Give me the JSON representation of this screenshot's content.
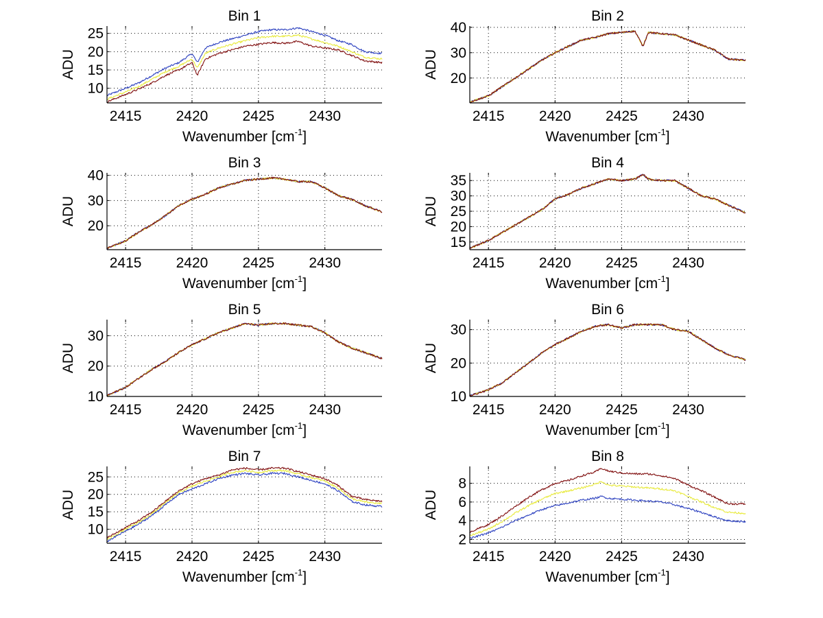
{
  "chart_data": [
    {
      "type": "line",
      "title": "Bin 1",
      "xlabel": "Wavenumber [cm-1]",
      "xlabel_main": "Wavenumber [cm",
      "xlabel_sup": "-1",
      "xlabel_end": "]",
      "ylabel": "ADU",
      "xlim": [
        2413.6,
        2434.3
      ],
      "ylim": [
        6,
        27
      ],
      "xticks": [
        2415,
        2420,
        2425,
        2430
      ],
      "yticks": [
        10,
        15,
        20,
        25
      ],
      "grid": true,
      "x": [
        2413.6,
        2415,
        2416,
        2417,
        2418,
        2419,
        2420,
        2420.4,
        2421,
        2422,
        2423,
        2424,
        2425,
        2426,
        2427,
        2428,
        2429,
        2430,
        2431,
        2432,
        2433,
        2434.3
      ],
      "series": [
        {
          "name": "blue",
          "color": "#2a3fbf",
          "values": [
            8,
            10,
            11.5,
            13.5,
            15.5,
            17,
            19.5,
            17,
            21,
            22.5,
            23.5,
            24.5,
            25.5,
            26,
            26,
            26.5,
            25.5,
            24.5,
            23,
            22,
            20,
            19.5
          ]
        },
        {
          "name": "yellow",
          "color": "#e8ea3a",
          "values": [
            7,
            9,
            10.5,
            12.5,
            14.5,
            16,
            18,
            15.5,
            19.5,
            21,
            22,
            23,
            23.8,
            24.2,
            24.2,
            24.5,
            23.5,
            22.5,
            21.5,
            20,
            18.5,
            18
          ]
        },
        {
          "name": "darkred",
          "color": "#7f0d0d",
          "values": [
            6.3,
            8.3,
            9.8,
            11.5,
            13.5,
            15,
            17,
            13.5,
            18,
            19.5,
            20.5,
            21.5,
            22,
            22.5,
            22.3,
            22.8,
            21.5,
            21,
            20.5,
            19,
            17.5,
            17
          ]
        }
      ]
    },
    {
      "type": "line",
      "title": "Bin 2",
      "xlabel": "Wavenumber [cm-1]",
      "xlabel_main": "Wavenumber [cm",
      "xlabel_sup": "-1",
      "xlabel_end": "]",
      "ylabel": "ADU",
      "xlim": [
        2413.6,
        2434.3
      ],
      "ylim": [
        10.2,
        40.5
      ],
      "xticks": [
        2415,
        2420,
        2425,
        2430
      ],
      "yticks": [
        20,
        30,
        40
      ],
      "grid": true,
      "x": [
        2413.6,
        2415,
        2416,
        2417,
        2418,
        2419,
        2420,
        2421,
        2422,
        2423,
        2424,
        2425,
        2426,
        2426.6,
        2427,
        2428,
        2429,
        2430,
        2431,
        2432,
        2433,
        2434.3
      ],
      "series": [
        {
          "name": "blue",
          "color": "#2a3fbf",
          "values": [
            10.5,
            13,
            16.5,
            20,
            23.5,
            27,
            30,
            32.5,
            35,
            36,
            37.5,
            38,
            38.5,
            32.5,
            38,
            37.5,
            37,
            35,
            33,
            31,
            27.5,
            27
          ]
        },
        {
          "name": "yellow",
          "color": "#e8ea3a",
          "values": [
            10.5,
            13,
            16.5,
            20,
            23.5,
            27,
            30,
            32.5,
            35,
            36,
            37.5,
            38,
            38.5,
            32.5,
            38,
            37.5,
            37,
            35,
            33,
            31,
            27.5,
            27
          ]
        },
        {
          "name": "darkred",
          "color": "#7f0d0d",
          "values": [
            10.5,
            13,
            16.5,
            20,
            23.5,
            27,
            30,
            32.5,
            35,
            36,
            37.5,
            38,
            38.5,
            32.5,
            38,
            37.5,
            37,
            35,
            33,
            31,
            27.5,
            27
          ]
        }
      ]
    },
    {
      "type": "line",
      "title": "Bin 3",
      "xlabel": "Wavenumber [cm-1]",
      "xlabel_main": "Wavenumber [cm",
      "xlabel_sup": "-1",
      "xlabel_end": "]",
      "ylabel": "ADU",
      "xlim": [
        2413.6,
        2434.3
      ],
      "ylim": [
        10.5,
        41
      ],
      "xticks": [
        2415,
        2420,
        2425,
        2430
      ],
      "yticks": [
        20,
        30,
        40
      ],
      "grid": true,
      "x": [
        2413.6,
        2415,
        2416,
        2417,
        2418,
        2419,
        2420,
        2421,
        2422,
        2423,
        2424,
        2425,
        2426,
        2427,
        2428,
        2429,
        2430,
        2431,
        2432,
        2433,
        2434.3
      ],
      "series": [
        {
          "name": "blue",
          "color": "#2a3fbf",
          "values": [
            11,
            14,
            17.5,
            20.5,
            24,
            28,
            30.5,
            32.5,
            35,
            36.5,
            38,
            38.5,
            39,
            38.5,
            37.5,
            37.5,
            35,
            32,
            30.5,
            28,
            25.5
          ]
        },
        {
          "name": "yellow",
          "color": "#e8ea3a",
          "values": [
            11,
            14,
            17.5,
            20.5,
            24,
            28,
            30.5,
            32.5,
            35,
            36.5,
            38,
            38.5,
            39,
            38.5,
            37.5,
            37.5,
            35,
            32,
            30.5,
            28,
            25.5
          ]
        },
        {
          "name": "darkred",
          "color": "#7f0d0d",
          "values": [
            11,
            14,
            17.5,
            20.5,
            24,
            28,
            30.5,
            32.5,
            35,
            36.5,
            38,
            38.5,
            39,
            38.5,
            37.5,
            37.5,
            35,
            32,
            30.5,
            28,
            25.5
          ]
        }
      ]
    },
    {
      "type": "line",
      "title": "Bin 4",
      "xlabel": "Wavenumber [cm-1]",
      "xlabel_main": "Wavenumber [cm",
      "xlabel_sup": "-1",
      "xlabel_end": "]",
      "ylabel": "ADU",
      "xlim": [
        2413.6,
        2434.3
      ],
      "ylim": [
        12.5,
        37.5
      ],
      "xticks": [
        2415,
        2420,
        2425,
        2430
      ],
      "yticks": [
        15,
        20,
        25,
        30,
        35
      ],
      "grid": true,
      "x": [
        2413.6,
        2415,
        2416,
        2417,
        2418,
        2419,
        2420,
        2421,
        2422,
        2423,
        2424,
        2425,
        2426,
        2426.6,
        2427,
        2428,
        2429,
        2430,
        2431,
        2432,
        2433,
        2434.3
      ],
      "series": [
        {
          "name": "blue",
          "color": "#2a3fbf",
          "values": [
            13,
            15.5,
            18,
            20.5,
            23,
            25.5,
            29,
            30.5,
            32.5,
            34,
            35.5,
            35,
            35.5,
            37,
            35.5,
            35,
            35,
            32.5,
            30,
            29,
            27,
            24.5
          ]
        },
        {
          "name": "yellow",
          "color": "#e8ea3a",
          "values": [
            13,
            15.5,
            18,
            20.5,
            23,
            25.5,
            29,
            30.5,
            32.5,
            34,
            35.5,
            35,
            35.5,
            37,
            35.5,
            35,
            35,
            32.5,
            30,
            29,
            27,
            24.5
          ]
        },
        {
          "name": "darkred",
          "color": "#7f0d0d",
          "values": [
            13,
            15.5,
            18,
            20.5,
            23,
            25.5,
            29,
            30.5,
            32.5,
            34,
            35.5,
            35,
            35.5,
            37,
            35.5,
            35,
            35,
            32.5,
            30,
            29,
            27,
            24.5
          ]
        }
      ]
    },
    {
      "type": "line",
      "title": "Bin 5",
      "xlabel": "Wavenumber [cm-1]",
      "xlabel_main": "Wavenumber [cm",
      "xlabel_sup": "-1",
      "xlabel_end": "]",
      "ylabel": "ADU",
      "xlim": [
        2413.6,
        2434.3
      ],
      "ylim": [
        10,
        35.3
      ],
      "xticks": [
        2415,
        2420,
        2425,
        2430
      ],
      "yticks": [
        10,
        20,
        30
      ],
      "grid": true,
      "x": [
        2413.6,
        2415,
        2416,
        2417,
        2418,
        2419,
        2420,
        2421,
        2422,
        2423,
        2424,
        2425,
        2426,
        2427,
        2428,
        2429,
        2430,
        2431,
        2432,
        2433,
        2434.3
      ],
      "series": [
        {
          "name": "blue",
          "color": "#2a3fbf",
          "values": [
            10.3,
            13,
            16,
            19,
            21.5,
            24.5,
            27,
            29,
            31,
            32.5,
            34,
            33.5,
            34,
            34,
            33.5,
            33,
            31,
            28,
            26,
            24.5,
            22.5
          ]
        },
        {
          "name": "yellow",
          "color": "#e8ea3a",
          "values": [
            10.3,
            13,
            16,
            19,
            21.5,
            24.5,
            27,
            29,
            31,
            32.5,
            34,
            33.5,
            34,
            34,
            33.5,
            33,
            31,
            28,
            26,
            24.5,
            22.5
          ]
        },
        {
          "name": "darkred",
          "color": "#7f0d0d",
          "values": [
            10.3,
            13,
            16,
            19,
            21.5,
            24.5,
            27,
            29,
            31,
            32.5,
            34,
            33.5,
            34,
            34,
            33.5,
            33,
            31,
            28,
            26,
            24.5,
            22.5
          ]
        }
      ]
    },
    {
      "type": "line",
      "title": "Bin 6",
      "xlabel": "Wavenumber [cm-1]",
      "xlabel_main": "Wavenumber [cm",
      "xlabel_sup": "-1",
      "xlabel_end": "]",
      "ylabel": "ADU",
      "xlim": [
        2413.6,
        2434.3
      ],
      "ylim": [
        10,
        33
      ],
      "xticks": [
        2415,
        2420,
        2425,
        2430
      ],
      "yticks": [
        10,
        20,
        30
      ],
      "grid": true,
      "x": [
        2413.6,
        2415,
        2416,
        2417,
        2418,
        2419,
        2420,
        2421,
        2422,
        2423,
        2424,
        2425,
        2426,
        2427,
        2428,
        2429,
        2430,
        2431,
        2432,
        2433,
        2434.3
      ],
      "series": [
        {
          "name": "blue",
          "color": "#2a3fbf",
          "values": [
            10.2,
            12,
            14,
            17,
            20,
            23,
            25.5,
            27.5,
            29.5,
            31,
            31.5,
            30.5,
            31.5,
            31.5,
            31.5,
            30,
            29.5,
            27,
            24.5,
            22.5,
            21
          ]
        },
        {
          "name": "yellow",
          "color": "#e8ea3a",
          "values": [
            10.2,
            12,
            14,
            17,
            20,
            23,
            25.5,
            27.5,
            29.5,
            31,
            31.5,
            30.5,
            31.5,
            31.5,
            31.5,
            30,
            29.5,
            27,
            24.5,
            22.5,
            21
          ]
        },
        {
          "name": "darkred",
          "color": "#7f0d0d",
          "values": [
            10.2,
            12,
            14,
            17,
            20,
            23,
            25.5,
            27.5,
            29.5,
            31,
            31.5,
            30.5,
            31.5,
            31.5,
            31.5,
            30,
            29.5,
            27,
            24.5,
            22.5,
            21
          ]
        }
      ]
    },
    {
      "type": "line",
      "title": "Bin 7",
      "xlabel": "Wavenumber [cm-1]",
      "xlabel_main": "Wavenumber [cm",
      "xlabel_sup": "-1",
      "xlabel_end": "]",
      "ylabel": "ADU",
      "xlim": [
        2413.6,
        2434.3
      ],
      "ylim": [
        6,
        28
      ],
      "xticks": [
        2415,
        2420,
        2425,
        2430
      ],
      "yticks": [
        10,
        15,
        20,
        25
      ],
      "grid": true,
      "x": [
        2413.6,
        2415,
        2416,
        2417,
        2418,
        2419,
        2420,
        2421,
        2422,
        2423,
        2424,
        2425,
        2426,
        2427,
        2428,
        2429,
        2430,
        2431,
        2432,
        2433,
        2434.3
      ],
      "series": [
        {
          "name": "darkred",
          "color": "#7f0d0d",
          "values": [
            7.5,
            10.5,
            12.5,
            15,
            18,
            21,
            23,
            24.5,
            25.5,
            27,
            27.5,
            27,
            27.5,
            27.5,
            26.5,
            25.5,
            24.5,
            22.5,
            19.5,
            18.5,
            18
          ]
        },
        {
          "name": "yellow",
          "color": "#e8ea3a",
          "values": [
            7,
            10,
            12,
            14.5,
            17.5,
            20.5,
            22.3,
            23.8,
            25,
            26.3,
            26.8,
            26.3,
            26.8,
            26.8,
            25.8,
            24.8,
            23.8,
            21.8,
            18.8,
            17.8,
            17.3
          ]
        },
        {
          "name": "blue",
          "color": "#2a3fbf",
          "values": [
            6.5,
            9.5,
            11.5,
            14,
            17,
            20,
            21.5,
            23,
            24.5,
            25.5,
            26,
            25.5,
            26,
            26,
            25,
            24,
            23,
            21,
            18,
            17,
            16.5
          ]
        }
      ]
    },
    {
      "type": "line",
      "title": "Bin 8",
      "xlabel": "Wavenumber [cm-1]",
      "xlabel_main": "Wavenumber [cm",
      "xlabel_sup": "-1",
      "xlabel_end": "]",
      "ylabel": "ADU",
      "xlim": [
        2413.6,
        2434.3
      ],
      "ylim": [
        1.6,
        9.8
      ],
      "xticks": [
        2415,
        2420,
        2425,
        2430
      ],
      "yticks": [
        2,
        4,
        6,
        8
      ],
      "grid": true,
      "x": [
        2413.6,
        2415,
        2416,
        2417,
        2418,
        2419,
        2420,
        2421,
        2422,
        2423,
        2423.5,
        2424,
        2425,
        2426,
        2427,
        2428,
        2429,
        2430,
        2431,
        2432,
        2433,
        2434.3
      ],
      "series": [
        {
          "name": "darkred",
          "color": "#7f0d0d",
          "values": [
            2.8,
            3.6,
            4.5,
            5.5,
            6.5,
            7.3,
            8.0,
            8.3,
            8.8,
            9.2,
            9.6,
            9.3,
            9.1,
            9.0,
            9.0,
            8.8,
            8.5,
            7.8,
            7.2,
            6.5,
            5.8,
            5.8
          ]
        },
        {
          "name": "yellow",
          "color": "#e8ea3a",
          "values": [
            2.4,
            3.1,
            3.9,
            4.8,
            5.6,
            6.3,
            6.9,
            7.2,
            7.5,
            7.9,
            8.2,
            7.8,
            7.7,
            7.6,
            7.5,
            7.4,
            7.2,
            6.6,
            6.0,
            5.4,
            4.9,
            4.8
          ]
        },
        {
          "name": "blue",
          "color": "#2a3fbf",
          "values": [
            2.1,
            2.7,
            3.3,
            4.0,
            4.6,
            5.2,
            5.6,
            5.9,
            6.2,
            6.4,
            6.6,
            6.4,
            6.3,
            6.2,
            6.1,
            6.0,
            5.7,
            5.3,
            4.9,
            4.4,
            4.0,
            3.9
          ]
        }
      ]
    }
  ]
}
